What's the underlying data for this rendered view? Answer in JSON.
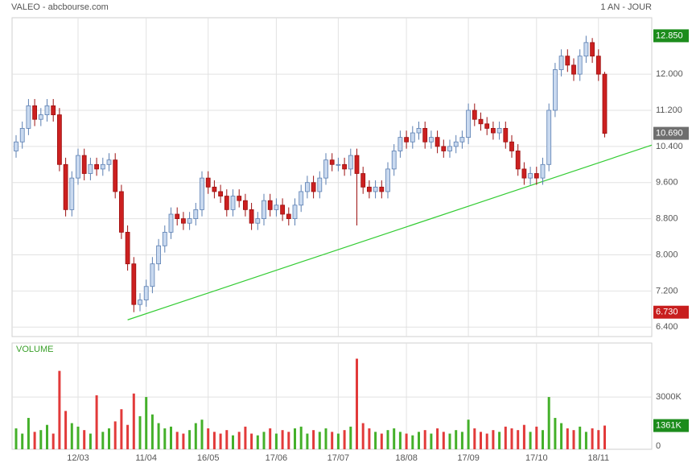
{
  "chart_data": {
    "type": "candlestick",
    "title": "VALEO - abcbourse.com",
    "subtitle": "1 AN - JOUR",
    "categories": [
      null,
      null,
      null,
      null,
      null,
      null,
      null,
      null,
      null,
      null,
      "12/03",
      null,
      null,
      null,
      null,
      null,
      null,
      null,
      null,
      null,
      null,
      "11/04",
      null,
      null,
      null,
      null,
      null,
      null,
      null,
      null,
      null,
      "16/05",
      null,
      null,
      null,
      null,
      null,
      null,
      null,
      null,
      null,
      null,
      "17/06",
      null,
      null,
      null,
      null,
      null,
      null,
      null,
      null,
      null,
      "17/07",
      null,
      null,
      null,
      null,
      null,
      null,
      null,
      null,
      null,
      null,
      "18/08",
      null,
      null,
      null,
      null,
      null,
      null,
      null,
      null,
      null,
      "17/09",
      null,
      null,
      null,
      null,
      null,
      null,
      null,
      null,
      null,
      null,
      "17/10",
      null,
      null,
      null,
      null,
      null,
      null,
      null,
      null,
      null,
      "18/11",
      null
    ],
    "open": [
      10.3,
      10.5,
      10.8,
      11.3,
      11.0,
      11.1,
      11.3,
      11.1,
      10.0,
      9.0,
      9.7,
      10.2,
      9.8,
      10.0,
      9.9,
      10.0,
      10.1,
      9.4,
      8.5,
      7.8,
      6.9,
      7.0,
      7.3,
      7.8,
      8.2,
      8.5,
      8.9,
      8.8,
      8.7,
      8.8,
      9.0,
      9.7,
      9.5,
      9.4,
      9.3,
      9.0,
      9.3,
      9.2,
      9.0,
      8.7,
      8.8,
      9.2,
      9.0,
      9.1,
      8.9,
      8.8,
      9.1,
      9.4,
      9.6,
      9.4,
      9.7,
      10.1,
      10.0,
      10.0,
      9.9,
      10.2,
      9.8,
      9.5,
      9.4,
      9.5,
      9.4,
      9.9,
      10.3,
      10.6,
      10.5,
      10.7,
      10.8,
      10.5,
      10.6,
      10.4,
      10.3,
      10.4,
      10.5,
      10.6,
      11.2,
      11.0,
      10.9,
      10.8,
      10.7,
      10.8,
      10.5,
      10.3,
      9.9,
      9.7,
      9.8,
      9.7,
      10.0,
      11.2,
      12.1,
      12.4,
      12.2,
      12.0,
      12.4,
      12.7,
      12.4,
      12.0
    ],
    "high": [
      10.65,
      10.95,
      11.45,
      11.45,
      11.25,
      11.45,
      11.45,
      11.25,
      10.15,
      9.85,
      10.35,
      10.35,
      10.15,
      10.15,
      10.15,
      10.25,
      10.25,
      9.55,
      8.65,
      7.95,
      7.15,
      7.45,
      7.95,
      8.35,
      8.65,
      9.05,
      9.05,
      8.95,
      8.95,
      9.15,
      9.85,
      9.85,
      9.65,
      9.55,
      9.45,
      9.45,
      9.45,
      9.35,
      9.15,
      8.95,
      9.35,
      9.35,
      9.25,
      9.25,
      9.05,
      9.25,
      9.55,
      9.75,
      9.75,
      9.85,
      10.25,
      10.25,
      10.15,
      10.15,
      10.35,
      10.35,
      9.95,
      9.65,
      9.65,
      9.65,
      10.05,
      10.45,
      10.75,
      10.75,
      10.85,
      10.95,
      10.95,
      10.75,
      10.75,
      10.55,
      10.55,
      10.65,
      10.75,
      11.35,
      11.35,
      11.15,
      11.05,
      10.95,
      10.95,
      10.95,
      10.65,
      10.45,
      10.05,
      9.95,
      9.95,
      10.15,
      11.35,
      12.25,
      12.55,
      12.55,
      12.35,
      12.55,
      12.85,
      12.8,
      12.55,
      12.05
    ],
    "low": [
      10.15,
      10.35,
      10.65,
      10.85,
      10.85,
      10.95,
      10.95,
      9.85,
      8.85,
      8.85,
      9.55,
      9.65,
      9.65,
      9.75,
      9.75,
      9.85,
      9.25,
      8.35,
      7.65,
      6.73,
      6.75,
      6.85,
      7.15,
      7.65,
      8.05,
      8.35,
      8.65,
      8.55,
      8.55,
      8.65,
      8.85,
      9.35,
      9.25,
      9.15,
      8.85,
      8.85,
      9.05,
      8.85,
      8.55,
      8.55,
      8.65,
      8.85,
      8.85,
      8.75,
      8.65,
      8.65,
      8.95,
      9.25,
      9.25,
      9.25,
      9.55,
      9.85,
      9.85,
      9.75,
      9.75,
      8.65,
      9.35,
      9.25,
      9.25,
      9.25,
      9.25,
      9.75,
      10.15,
      10.35,
      10.35,
      10.55,
      10.35,
      10.35,
      10.25,
      10.15,
      10.15,
      10.25,
      10.35,
      10.45,
      10.85,
      10.75,
      10.65,
      10.55,
      10.55,
      10.35,
      10.15,
      9.75,
      9.55,
      9.55,
      9.55,
      9.55,
      9.85,
      11.05,
      11.95,
      12.05,
      11.85,
      11.85,
      12.25,
      12.25,
      11.85,
      10.6
    ],
    "close": [
      10.5,
      10.8,
      11.3,
      11.0,
      11.1,
      11.3,
      11.1,
      10.0,
      9.0,
      9.7,
      10.2,
      9.8,
      10.0,
      9.9,
      10.0,
      10.1,
      9.4,
      8.5,
      7.8,
      6.9,
      7.0,
      7.3,
      7.8,
      8.2,
      8.5,
      8.9,
      8.8,
      8.7,
      8.8,
      9.0,
      9.7,
      9.5,
      9.4,
      9.3,
      9.0,
      9.3,
      9.2,
      9.0,
      8.7,
      8.8,
      9.2,
      9.0,
      9.1,
      8.9,
      8.8,
      9.1,
      9.4,
      9.6,
      9.4,
      9.7,
      10.1,
      10.0,
      10.0,
      9.9,
      10.2,
      9.8,
      9.5,
      9.4,
      9.5,
      9.4,
      9.9,
      10.3,
      10.6,
      10.5,
      10.7,
      10.8,
      10.5,
      10.6,
      10.4,
      10.3,
      10.4,
      10.5,
      10.6,
      11.2,
      11.0,
      10.9,
      10.8,
      10.7,
      10.8,
      10.5,
      10.3,
      9.9,
      9.7,
      9.8,
      9.7,
      10.0,
      11.2,
      12.1,
      12.4,
      12.2,
      12.0,
      12.4,
      12.7,
      12.4,
      12.0,
      10.69
    ],
    "up_color": "#c9d9ef",
    "up_edge": "#5b7fb2",
    "down_color": "#cc2020",
    "down_edge": "#9c1010",
    "ylim": [
      6.19,
      13.25
    ],
    "yticks": [
      {
        "value": 6.4,
        "label": "6.400"
      },
      {
        "value": 7.2,
        "label": "7.200"
      },
      {
        "value": 8.0,
        "label": "8.000"
      },
      {
        "value": 8.8,
        "label": "8.800"
      },
      {
        "value": 9.6,
        "label": "9.600"
      },
      {
        "value": 10.4,
        "label": "10.400"
      },
      {
        "value": 11.2,
        "label": "11.200"
      },
      {
        "value": 12.0,
        "label": "12.000"
      }
    ],
    "grid": true,
    "trendline": {
      "x": [
        18,
        102.6
      ],
      "y": [
        6.56,
        10.43
      ],
      "color": "#33cc33"
    },
    "price_labels": [
      {
        "value": 12.85,
        "label": "12.850",
        "color": "#1c8c1c"
      },
      {
        "value": 10.69,
        "label": "10.690",
        "color": "#6e6e6e"
      },
      {
        "value": 6.73,
        "label": "6.730",
        "color": "#c81e1e"
      }
    ],
    "volume": {
      "title": "VOLUME",
      "values": [
        1200,
        900,
        1800,
        1000,
        1100,
        1400,
        900,
        4500,
        2200,
        1500,
        1300,
        1100,
        900,
        3100,
        1000,
        1200,
        1600,
        2300,
        1400,
        3200,
        1900,
        3000,
        2000,
        1500,
        1200,
        1300,
        1000,
        900,
        1100,
        1500,
        1700,
        1200,
        1000,
        900,
        1100,
        800,
        1000,
        1300,
        900,
        800,
        1000,
        1200,
        900,
        1100,
        1000,
        1200,
        1300,
        900,
        1100,
        1000,
        1200,
        1000,
        900,
        1100,
        1300,
        5200,
        1500,
        1200,
        1000,
        900,
        1100,
        1200,
        1000,
        900,
        800,
        1000,
        1100,
        900,
        1200,
        1000,
        900,
        1100,
        1000,
        1700,
        1200,
        1000,
        900,
        1100,
        1000,
        1300,
        1200,
        1100,
        1400,
        1000,
        1300,
        1100,
        3000,
        1800,
        1500,
        1200,
        1100,
        1300,
        1000,
        1200,
        1100,
        1361
      ],
      "ylim": [
        0,
        6100
      ],
      "yticks": [
        0,
        {
          "value": 3000,
          "label": "3000K"
        }
      ],
      "up_color": "#44b02a",
      "down_color": "#e23a3a",
      "last_label": {
        "value": 1361,
        "label": "1361K",
        "color": "#1c8c1c"
      }
    }
  }
}
